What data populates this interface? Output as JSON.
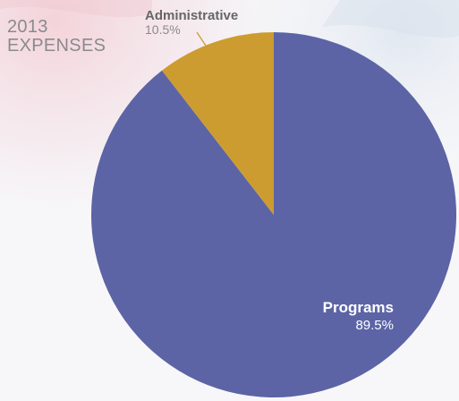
{
  "chart_data": {
    "type": "pie",
    "title_lines": [
      "2013",
      "EXPENSES"
    ],
    "slices": [
      {
        "label": "Programs",
        "value": 89.5,
        "value_label": "89.5%",
        "color": "#5c64a6"
      },
      {
        "label": "Administrative",
        "value": 10.5,
        "value_label": "10.5%",
        "color": "#cd9c30"
      }
    ],
    "start_angle_deg": 0,
    "direction": "clockwise",
    "legend": "none",
    "label_colors": {
      "inside_name": "#ffffff",
      "inside_value": "#ffffff",
      "outside_name": "#666666",
      "outside_value": "#8a8a8e",
      "leader_line": "#cd9c30"
    }
  }
}
